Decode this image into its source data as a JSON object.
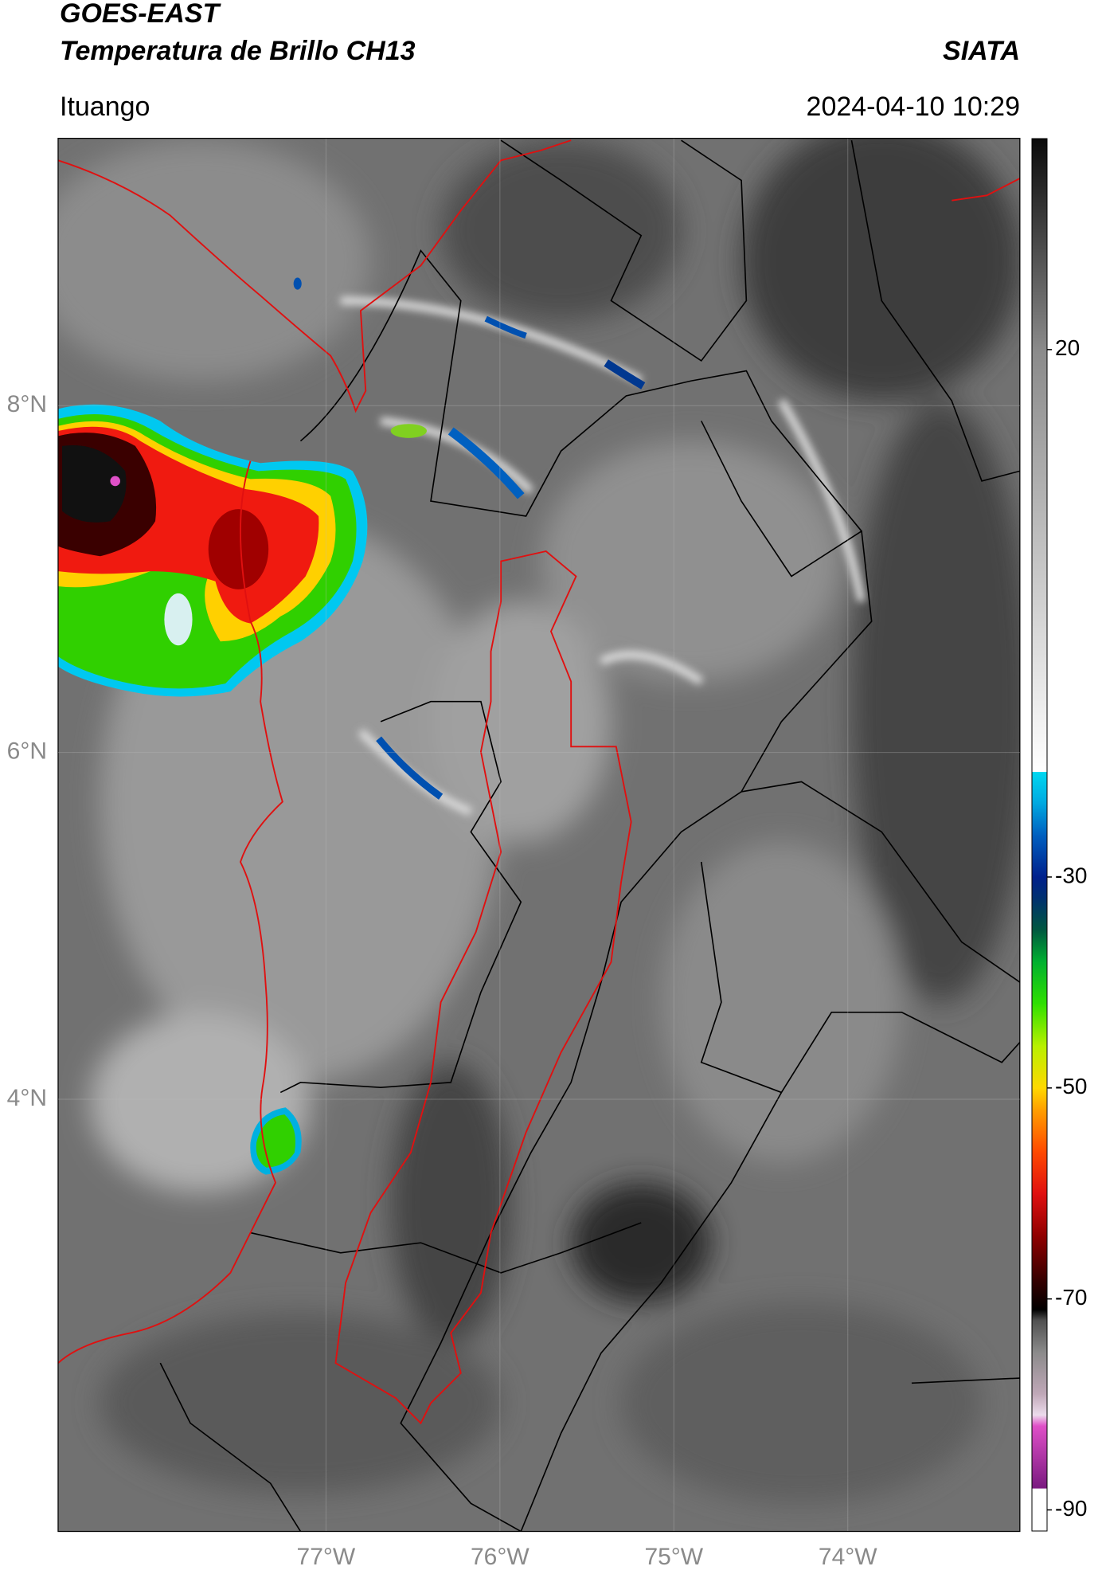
{
  "header": {
    "title": "GOES-EAST",
    "subtitle": "Temperatura de Brillo CH13",
    "source": "SIATA",
    "location": "Ituango",
    "datetime": "2024-04-10 10:29"
  },
  "map": {
    "xlim": [
      -78.54,
      -73.01
    ],
    "ylim": [
      1.51,
      9.54
    ],
    "xticks": [
      {
        "value": -77,
        "label": "77°W"
      },
      {
        "value": -76,
        "label": "76°W"
      },
      {
        "value": -75,
        "label": "75°W"
      },
      {
        "value": -74,
        "label": "74°W"
      }
    ],
    "yticks": [
      {
        "value": 8,
        "label": "8°N"
      },
      {
        "value": 6,
        "label": "6°N"
      },
      {
        "value": 4,
        "label": "4°N"
      }
    ],
    "grid": true
  },
  "colorbar": {
    "lim": [
      -92,
      40
    ],
    "ticks": [
      20,
      -30,
      -50,
      -70,
      -90
    ],
    "stops": [
      {
        "value": -92,
        "color": "#ffffff"
      },
      {
        "value": -88,
        "color": "#ffffff"
      },
      {
        "value": -87.9,
        "color": "#7a1a80"
      },
      {
        "value": -82,
        "color": "#e050c8"
      },
      {
        "value": -81,
        "color": "#ecdcec"
      },
      {
        "value": -79,
        "color": "#c0a8b8"
      },
      {
        "value": -75,
        "color": "#8a8a8a"
      },
      {
        "value": -72,
        "color": "#505050"
      },
      {
        "value": -71,
        "color": "#000000"
      },
      {
        "value": -68,
        "color": "#3a0000"
      },
      {
        "value": -64,
        "color": "#900000"
      },
      {
        "value": -60,
        "color": "#e01010"
      },
      {
        "value": -56,
        "color": "#ff4a00"
      },
      {
        "value": -52,
        "color": "#ffa000"
      },
      {
        "value": -50,
        "color": "#ffd800"
      },
      {
        "value": -46,
        "color": "#b8f000"
      },
      {
        "value": -42,
        "color": "#30e000"
      },
      {
        "value": -38,
        "color": "#00b030"
      },
      {
        "value": -35,
        "color": "#005840"
      },
      {
        "value": -32,
        "color": "#003070"
      },
      {
        "value": -30,
        "color": "#00208c"
      },
      {
        "value": -26,
        "color": "#0060c0"
      },
      {
        "value": -23,
        "color": "#00a8e0"
      },
      {
        "value": -20,
        "color": "#00d8f0"
      },
      {
        "value": -20,
        "color": "#ffffff"
      },
      {
        "value": 20,
        "color": "#8a8a8a"
      },
      {
        "value": 40,
        "color": "#0a0a0a"
      }
    ]
  }
}
